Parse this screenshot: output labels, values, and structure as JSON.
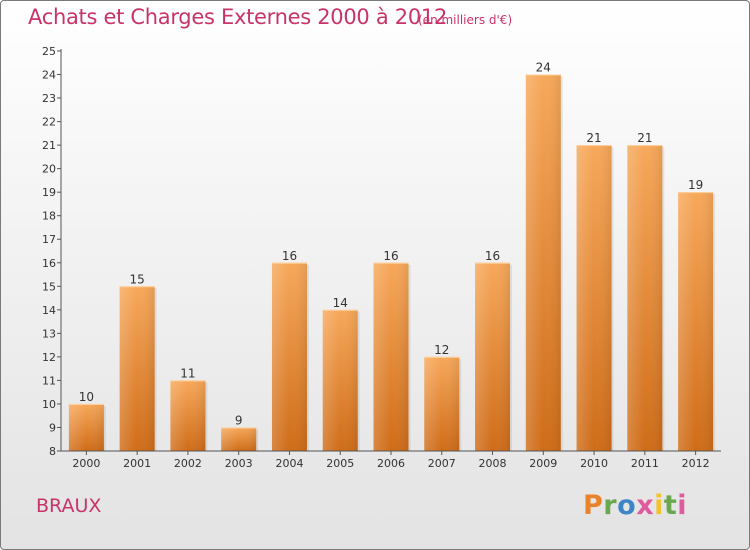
{
  "header": {
    "title": "Achats et Charges Externes 2000 à 2012",
    "subtitle": "(en milliers d'€)"
  },
  "footer": {
    "commune": "BRAUX",
    "logo_text": "Proxiti",
    "logo_colors": [
      "#e9832a",
      "#6aa84f",
      "#3d85c6",
      "#e05a9e",
      "#f1c232",
      "#6aa84f",
      "#e05a9e"
    ]
  },
  "colors": {
    "bar_top": "#f7a85a",
    "bar_bottom": "#cf6c18",
    "title": "#c8336a"
  },
  "chart_data": {
    "type": "bar",
    "title": "Achats et Charges Externes 2000 à 2012",
    "subtitle": "(en milliers d'€)",
    "xlabel": "",
    "ylabel": "",
    "categories": [
      "2000",
      "2001",
      "2002",
      "2003",
      "2004",
      "2005",
      "2006",
      "2007",
      "2008",
      "2009",
      "2010",
      "2011",
      "2012"
    ],
    "values": [
      10,
      15,
      11,
      9,
      16,
      14,
      16,
      12,
      16,
      24,
      21,
      21,
      19
    ],
    "ylim": [
      8,
      25
    ],
    "yticks": [
      8,
      9,
      10,
      11,
      12,
      13,
      14,
      15,
      16,
      17,
      18,
      19,
      20,
      21,
      22,
      23,
      24,
      25
    ],
    "grid": false,
    "legend": "none"
  }
}
